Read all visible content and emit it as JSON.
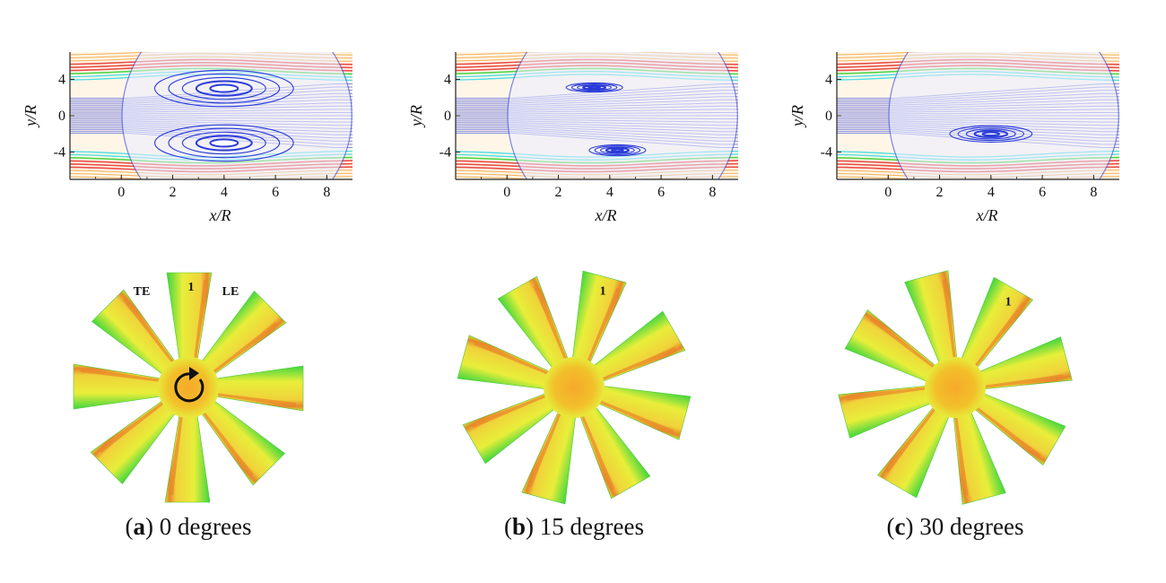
{
  "panels": [
    {
      "id": "a",
      "letter": "a",
      "caption_text": " 0 degrees",
      "flow": {
        "x_ticks": [
          "0",
          "2",
          "4",
          "6",
          "8"
        ],
        "y_ticks": [
          "-4",
          "0",
          "4"
        ],
        "xlabel": "x/R",
        "ylabel": "y/R",
        "x_range": [
          -2.0,
          9.0
        ],
        "y_range": [
          7.0,
          -7.0
        ],
        "vortices": [
          {
            "x": 4.0,
            "y": -3.0,
            "rx": 2.7,
            "ry": 2.0
          },
          {
            "x": 4.0,
            "y": 3.0,
            "rx": 2.7,
            "ry": 2.0
          }
        ]
      },
      "rotor": {
        "rotation_deg": 0,
        "labels": [
          {
            "text": "TE",
            "role": "trailing-edge"
          },
          {
            "text": "1",
            "role": "blade-number"
          },
          {
            "text": "LE",
            "role": "leading-edge"
          }
        ],
        "show_rotation_icon": true
      }
    },
    {
      "id": "b",
      "letter": "b",
      "caption_text": " 15 degrees",
      "flow": {
        "x_ticks": [
          "0",
          "2",
          "4",
          "6",
          "8"
        ],
        "y_ticks": [
          "-4",
          "0",
          "4"
        ],
        "xlabel": "x/R",
        "ylabel": "y/R",
        "x_range": [
          -2.0,
          9.0
        ],
        "y_range": [
          7.0,
          -7.0
        ],
        "vortices": [
          {
            "x": 4.3,
            "y": -3.8,
            "rx": 1.1,
            "ry": 0.6
          },
          {
            "x": 3.4,
            "y": 3.1,
            "rx": 1.1,
            "ry": 0.5
          }
        ]
      },
      "rotor": {
        "rotation_deg": 15,
        "labels": [
          {
            "text": "1",
            "role": "blade-number"
          }
        ],
        "show_rotation_icon": false
      }
    },
    {
      "id": "c",
      "letter": "c",
      "caption_text": " 30 degrees",
      "flow": {
        "x_ticks": [
          "0",
          "2",
          "4",
          "6",
          "8"
        ],
        "y_ticks": [
          "-4",
          "0",
          "4"
        ],
        "xlabel": "x/R",
        "ylabel": "y/R",
        "x_range": [
          -2.0,
          9.0
        ],
        "y_range": [
          7.0,
          -7.0
        ],
        "vortices": [
          {
            "x": 4.0,
            "y": -2.0,
            "rx": 1.6,
            "ry": 0.9
          }
        ]
      },
      "rotor": {
        "rotation_deg": 30,
        "labels": [
          {
            "text": "1",
            "role": "blade-number"
          }
        ],
        "show_rotation_icon": false
      }
    }
  ],
  "colors": {
    "freestream": "#f5a23a",
    "shear_red": "#e5302a",
    "shear_green": "#2fd12f",
    "shear_cyan": "#29d9e0",
    "wake_blue": "#2a3bd8",
    "blade_green": "#3ed63e",
    "blade_yellow": "#e8ee3a",
    "blade_orange": "#e8862a",
    "hub": "#f2c02a"
  }
}
